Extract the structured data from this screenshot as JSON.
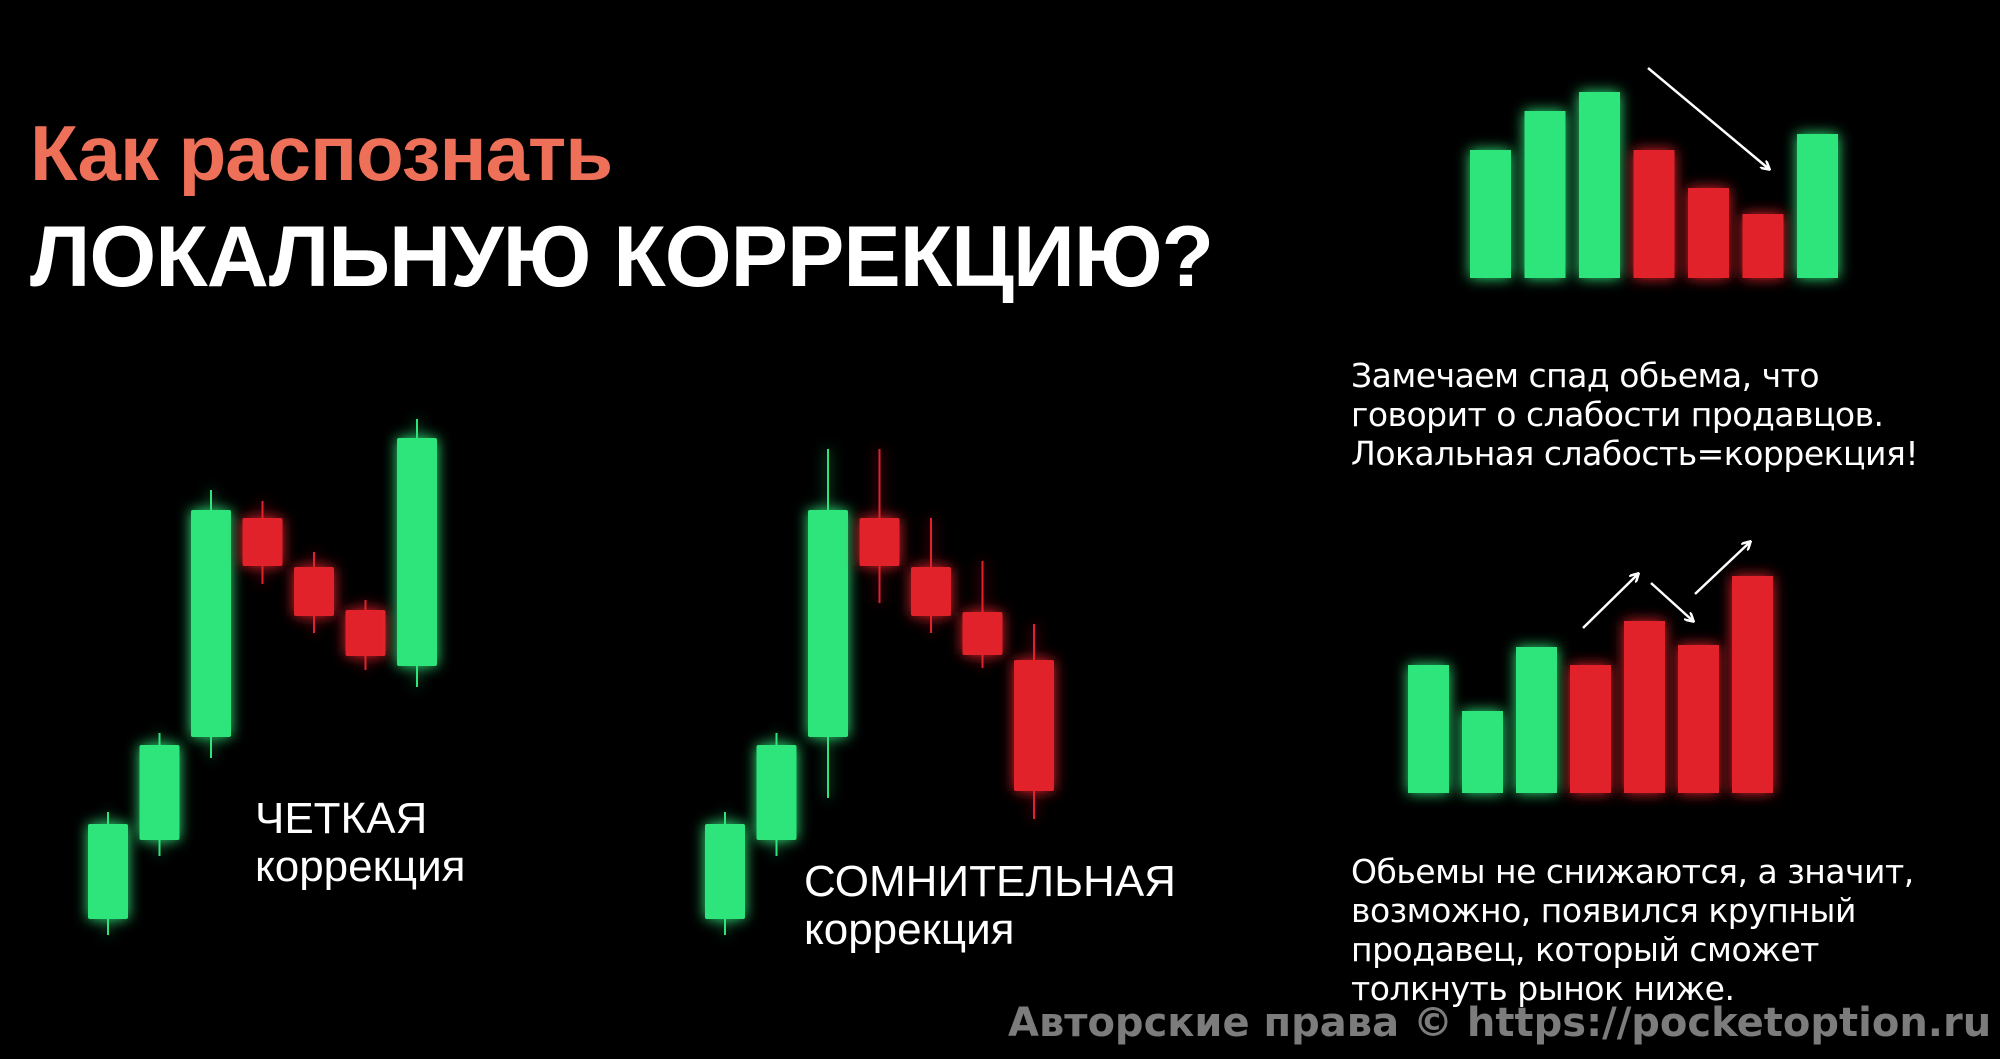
{
  "title": {
    "line1": "Как распознать",
    "line2": "ЛОКАЛЬНУЮ КОРРЕКЦИЮ?"
  },
  "labels": {
    "clear": [
      "ЧЕТКАЯ",
      "коррекция"
    ],
    "doubtful": [
      "СОМНИТЕЛЬНАЯ",
      "коррекция"
    ]
  },
  "descriptions": {
    "weak_volume": [
      "Замечаем спад обьема, что",
      "говорит о слабости продавцов.",
      "Локальная слабость=коррекция!"
    ],
    "strong_volume": [
      "Обьемы не снижаются, а значит,",
      "возможно, появился крупный",
      "продавец, который сможет",
      "толкнуть рынок ниже."
    ]
  },
  "watermark": "Авторские права © https://pocketoption.ru",
  "colors": {
    "title_accent": "#ef7059",
    "bull": "#2fe57c",
    "bear": "#e2242a",
    "text": "#ffffff",
    "background": "#000000"
  },
  "chart_data": [
    {
      "type": "candlestick",
      "name_ref": "labels.clear",
      "candles": [
        {
          "o": 81,
          "h": 188,
          "l": 65,
          "c": 176
        },
        {
          "o": 160,
          "h": 267,
          "l": 144,
          "c": 255
        },
        {
          "o": 263,
          "h": 510,
          "l": 242,
          "c": 490
        },
        {
          "o": 482,
          "h": 499,
          "l": 416,
          "c": 434
        },
        {
          "o": 433,
          "h": 448,
          "l": 367,
          "c": 384
        },
        {
          "o": 390,
          "h": 400,
          "l": 330,
          "c": 344
        },
        {
          "o": 334,
          "h": 581,
          "l": 313,
          "c": 562
        }
      ]
    },
    {
      "type": "candlestick",
      "name_ref": "labels.doubtful",
      "candles": [
        {
          "o": 81,
          "h": 188,
          "l": 65,
          "c": 176
        },
        {
          "o": 160,
          "h": 267,
          "l": 144,
          "c": 255
        },
        {
          "o": 263,
          "h": 551,
          "l": 202,
          "c": 490
        },
        {
          "o": 482,
          "h": 551,
          "l": 397,
          "c": 434
        },
        {
          "o": 433,
          "h": 482,
          "l": 367,
          "c": 384
        },
        {
          "o": 388,
          "h": 439,
          "l": 332,
          "c": 345
        },
        {
          "o": 340,
          "h": 376,
          "l": 181,
          "c": 209
        }
      ]
    },
    {
      "type": "bar",
      "desc_ref": "descriptions.weak_volume",
      "values": [
        128,
        167,
        186,
        128,
        90,
        64,
        144
      ],
      "colors": [
        "bull",
        "bull",
        "bull",
        "bear",
        "bear",
        "bear",
        "bull"
      ],
      "annotations": [
        {
          "type": "arrow",
          "direction": "down",
          "from_bar": 3,
          "to_bar": 5
        }
      ]
    },
    {
      "type": "bar",
      "desc_ref": "descriptions.strong_volume",
      "values": [
        128,
        82,
        146,
        128,
        172,
        148,
        217
      ],
      "colors": [
        "bull",
        "bull",
        "bull",
        "bear",
        "bear",
        "bear",
        "bear"
      ],
      "annotations": [
        {
          "type": "arrow",
          "direction": "up",
          "to_bar": 4
        },
        {
          "type": "arrow",
          "direction": "down",
          "to_bar": 5
        },
        {
          "type": "arrow",
          "direction": "up",
          "to_bar": 6
        }
      ]
    }
  ]
}
